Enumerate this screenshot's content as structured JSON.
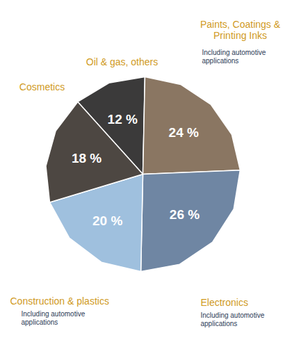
{
  "chart_data": {
    "type": "pie",
    "categories": [
      "Oil & gas, others",
      "Paints, Coatings & Printing Inks",
      "Electronics",
      "Construction & plastics",
      "Cosmetics"
    ],
    "values": [
      12,
      24,
      26,
      20,
      18
    ],
    "value_labels": [
      "12 %",
      "24 %",
      "26 %",
      "20 %",
      "18 %"
    ],
    "colors": [
      "#3b3a3a",
      "#8a7662",
      "#6f86a3",
      "#9fc0de",
      "#4d4742"
    ],
    "data_labels": true,
    "annotations": [
      {
        "category": "Paints, Coatings & Printing Inks",
        "text": "Including automotive applications"
      },
      {
        "category": "Electronics",
        "text": "Including automotive applications"
      },
      {
        "category": "Construction & plastics",
        "text": "Including automotive applications"
      }
    ]
  }
}
